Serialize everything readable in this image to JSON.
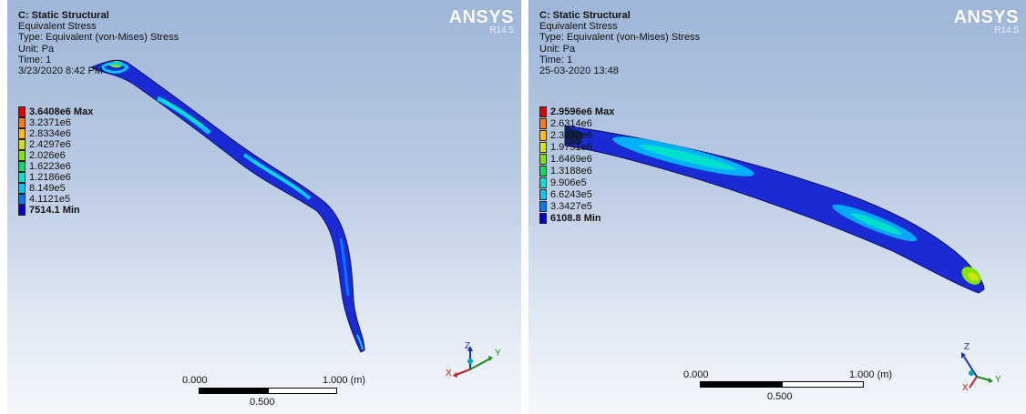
{
  "panels": [
    {
      "title": "C: Static Structural",
      "result": "Equivalent Stress",
      "type": "Type: Equivalent (von-Mises) Stress",
      "unit": "Unit: Pa",
      "time": "Time: 1",
      "date": "3/23/2020 8:42 PM",
      "logo": "ANSYS",
      "release": "R14.5",
      "legend": [
        {
          "label": "3.6408e6 Max",
          "color": "#e60000",
          "bold": true
        },
        {
          "label": "3.2371e6",
          "color": "#ff7f00",
          "bold": false
        },
        {
          "label": "2.8334e6",
          "color": "#ffbf00",
          "bold": false
        },
        {
          "label": "2.4297e6",
          "color": "#d2e600",
          "bold": false
        },
        {
          "label": "2.026e6",
          "color": "#7fe600",
          "bold": false
        },
        {
          "label": "1.6223e6",
          "color": "#00e064",
          "bold": false
        },
        {
          "label": "1.2186e6",
          "color": "#00e6c8",
          "bold": false
        },
        {
          "label": "8.149e5",
          "color": "#00c8ff",
          "bold": false
        },
        {
          "label": "4.1121e5",
          "color": "#0078ff",
          "bold": false
        },
        {
          "label": "7514.1 Min",
          "color": "#0000d2",
          "bold": true
        }
      ],
      "scale": {
        "left": "0.000",
        "right": "1.000 (m)",
        "mid": "0.500"
      },
      "axes": {
        "z": "Z",
        "y": "Y",
        "x": "X"
      }
    },
    {
      "title": "C: Static Structural",
      "result": "Equivalent Stress",
      "type": "Type: Equivalent (von-Mises) Stress",
      "unit": "Unit: Pa",
      "time": "Time: 1",
      "date": "25-03-2020 13:48",
      "logo": "ANSYS",
      "release": "R14.5",
      "legend": [
        {
          "label": "2.9596e6 Max",
          "color": "#e60000",
          "bold": true
        },
        {
          "label": "2.6314e6",
          "color": "#ff7f00",
          "bold": false
        },
        {
          "label": "2.3032e6",
          "color": "#ffbf00",
          "bold": false
        },
        {
          "label": "1.9751e6",
          "color": "#d2e600",
          "bold": false
        },
        {
          "label": "1.6469e6",
          "color": "#7fe600",
          "bold": false
        },
        {
          "label": "1.3188e6",
          "color": "#00e064",
          "bold": false
        },
        {
          "label": "9.906e5",
          "color": "#00e6c8",
          "bold": false
        },
        {
          "label": "6.6243e5",
          "color": "#00c8ff",
          "bold": false
        },
        {
          "label": "3.3427e5",
          "color": "#0078ff",
          "bold": false
        },
        {
          "label": "6108.8 Min",
          "color": "#0000d2",
          "bold": true
        }
      ],
      "scale": {
        "left": "0.000",
        "right": "1.000 (m)",
        "mid": "0.500"
      },
      "axes": {
        "z": "Z",
        "y": "Y",
        "x": "X"
      }
    }
  ]
}
